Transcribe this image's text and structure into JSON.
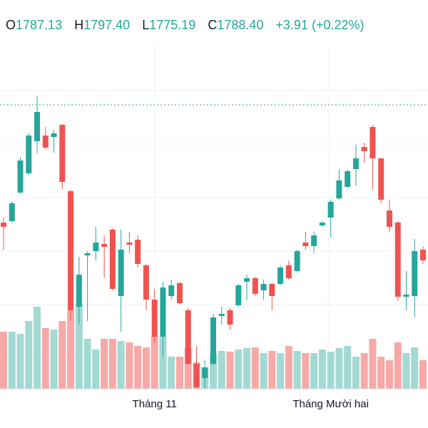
{
  "header": {
    "o_label": "O",
    "open": "1787.13",
    "h_label": "H",
    "high": "1797.40",
    "l_label": "L",
    "low": "1775.19",
    "c_label": "C",
    "close": "1788.40",
    "change": "+3.91 (+0.22%)"
  },
  "chart_data": {
    "type": "candlestick",
    "categories": [
      null,
      null,
      null,
      null,
      null,
      null,
      null,
      null,
      null,
      null,
      null,
      null,
      null,
      null,
      null,
      null,
      null,
      null,
      "Tháng 11",
      null,
      null,
      null,
      null,
      null,
      null,
      null,
      null,
      null,
      null,
      null,
      null,
      null,
      null,
      null,
      null,
      null,
      null,
      null,
      null,
      "Tháng Mười hai",
      null,
      null,
      null,
      null,
      null,
      null,
      null,
      null,
      null,
      null,
      null
    ],
    "open": [
      1805.2,
      1806,
      1822,
      1832.8,
      1850.8,
      1854,
      1853.2,
      1860,
      1822.8,
      1758,
      1786.8,
      1789.2,
      1793.2,
      1801.2,
      1764,
      1794,
      1795.6,
      1781.2,
      1762,
      1741.2,
      1764,
      1771.2,
      1756,
      1726,
      1718,
      1726,
      1752.8,
      1756,
      1758.8,
      1772,
      1774,
      1767.2,
      1770.8,
      1770.8,
      1781.2,
      1778,
      1794,
      1792,
      1803.6,
      1808,
      1818.8,
      1825.2,
      1835.2,
      1847.6,
      1858.8,
      1841.2,
      1812,
      1805.2,
      1763.6,
      1764,
      1790
    ],
    "high": [
      1808,
      1817.2,
      1842,
      1855.2,
      1876,
      1858.8,
      1857.2,
      1860.4,
      1823.6,
      1786,
      1789.2,
      1802.8,
      1798,
      1802,
      1801.2,
      1800,
      1798,
      1782,
      1768,
      1772,
      1773.2,
      1772,
      1757.2,
      1736,
      1728,
      1754,
      1758,
      1757.2,
      1770.8,
      1776,
      1774.8,
      1773.2,
      1771.6,
      1781.2,
      1784,
      1790,
      1800,
      1800,
      1806,
      1818,
      1835.2,
      1834.8,
      1848.8,
      1850,
      1860,
      1841.2,
      1818,
      1806,
      1778,
      1796,
      1792
    ],
    "low": [
      1790,
      1805.2,
      1821.2,
      1832,
      1844,
      1846,
      1844.4,
      1824,
      1750,
      1748,
      1750,
      1784,
      1774,
      1767.2,
      1744,
      1788,
      1780,
      1756,
      1738,
      1730,
      1762,
      1759.2,
      1725.2,
      1712,
      1712,
      1725.2,
      1748,
      1745.2,
      1758,
      1762,
      1764,
      1762,
      1756,
      1770,
      1773.2,
      1777.2,
      1790,
      1788,
      1802.8,
      1797.2,
      1818,
      1824.8,
      1826,
      1838.8,
      1824,
      1816,
      1800,
      1761.2,
      1756,
      1752,
      1782
    ],
    "close": [
      1802.8,
      1816,
      1840,
      1854,
      1867.2,
      1847.2,
      1855.2,
      1828,
      1756,
      1776,
      1788,
      1794,
      1791.6,
      1768,
      1790,
      1792.8,
      1782,
      1762,
      1741.2,
      1768.8,
      1770,
      1760,
      1726,
      1712.8,
      1724,
      1752,
      1754,
      1748,
      1770,
      1774,
      1765.2,
      1770.8,
      1764,
      1780,
      1774,
      1789.2,
      1792,
      1798,
      1805.2,
      1816.8,
      1828.8,
      1834,
      1841.2,
      1845.2,
      1841.2,
      1818,
      1802.8,
      1763.6,
      1764.8,
      1789.2,
      1784
    ],
    "volume": [
      80,
      80,
      77,
      95,
      115,
      85,
      83,
      95,
      110,
      120,
      70,
      55,
      70,
      70,
      67,
      65,
      60,
      58,
      73,
      73,
      45,
      45,
      57,
      37,
      30,
      50,
      53,
      52,
      55,
      57,
      58,
      50,
      53,
      50,
      60,
      53,
      50,
      50,
      55,
      52,
      57,
      60,
      45,
      50,
      70,
      45,
      40,
      65,
      50,
      58,
      40
    ],
    "ylim": [
      1712,
      1906
    ],
    "volume_lim": [
      0,
      300
    ],
    "up_color": "#26a69a",
    "down_color": "#ef5350",
    "up_volume_color": "#a3d9d3",
    "down_volume_color": "#f7a9a7"
  }
}
